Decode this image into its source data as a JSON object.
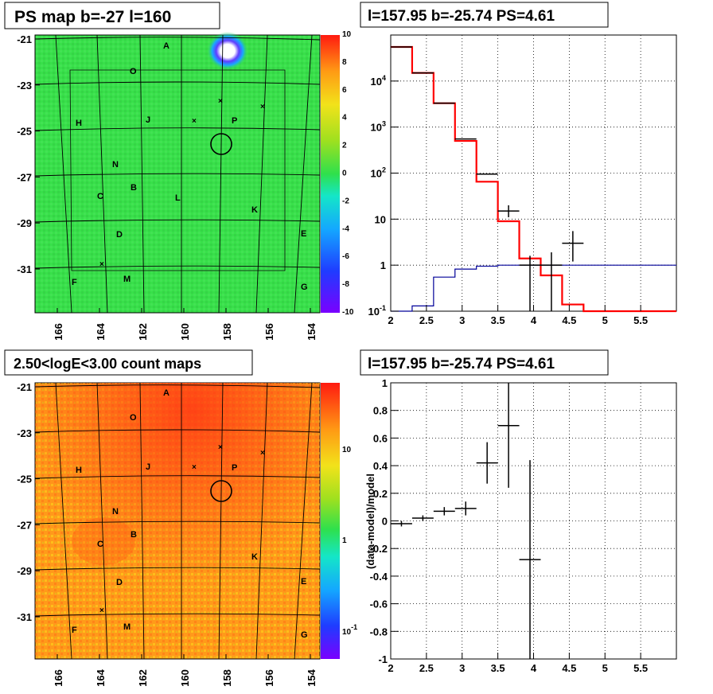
{
  "panels": {
    "tl_title": "PS map b=-27 l=160",
    "tr_title": "l=157.95 b=-25.74 PS=4.61",
    "bl_title": "2.50<logE<3.00 count maps",
    "br_title": "l=157.95 b=-25.74 PS=4.61"
  },
  "colors": {
    "model_red": "#ff0000",
    "bg_blue": "#000099",
    "data_black": "#000000",
    "map_green": "#38e04a",
    "count_orange": "#ff9a1a"
  },
  "chart_data": [
    {
      "type": "heatmap",
      "title": "PS map b=-27 l=160",
      "x_ticks": [
        "166",
        "164",
        "162",
        "160",
        "158",
        "156",
        "154"
      ],
      "y_ticks": [
        "-21",
        "-23",
        "-25",
        "-27",
        "-29",
        "-31"
      ],
      "colorbar_ticks": [
        "10",
        "8",
        "6",
        "4",
        "2",
        "0",
        "-2",
        "-4",
        "-6",
        "-8",
        "-10"
      ],
      "colorbar_range": [
        -10,
        10
      ],
      "region_labels": [
        "A",
        "O",
        "H",
        "J",
        "P",
        "N",
        "B",
        "C",
        "L",
        "K",
        "D",
        "E",
        "F",
        "M",
        "G"
      ],
      "source_marker": {
        "l": 157.95,
        "b": -25.74
      }
    },
    {
      "type": "line",
      "title": "l=157.95 b=-25.74 PS=4.61",
      "y_scale": "log",
      "xlim": [
        2,
        6
      ],
      "ylim": [
        0.1,
        100000
      ],
      "x_ticks": [
        "2",
        "2.5",
        "3",
        "3.5",
        "4",
        "4.5",
        "5",
        "5.5"
      ],
      "y_ticks": [
        "10^-1",
        "1",
        "10",
        "10^2",
        "10^3",
        "10^4"
      ],
      "model_red": {
        "edges": [
          2.0,
          2.3,
          2.6,
          2.9,
          3.2,
          3.5,
          3.8,
          4.1,
          4.4,
          4.7,
          6.0
        ],
        "values": [
          55000,
          15000,
          3300,
          500,
          65,
          9,
          1.4,
          0.6,
          0.14,
          0.1
        ]
      },
      "background_blue": {
        "edges": [
          2.0,
          2.3,
          2.6,
          2.9,
          3.2,
          3.5,
          3.8,
          6.0
        ],
        "values": [
          0.1,
          0.13,
          0.55,
          0.82,
          0.95,
          1.0,
          1.0
        ]
      },
      "data_points": [
        {
          "x": 2.15,
          "y": 55000
        },
        {
          "x": 2.45,
          "y": 15000
        },
        {
          "x": 2.75,
          "y": 3300
        },
        {
          "x": 3.05,
          "y": 550
        },
        {
          "x": 3.35,
          "y": 95,
          "xerr": 0.15
        },
        {
          "x": 3.65,
          "y": 15,
          "xerr": 0.15,
          "ylo": 11,
          "yhi": 20
        },
        {
          "x": 3.95,
          "y": 1.0,
          "xerr": 0.15,
          "ylo": 0.1,
          "yhi": 1.6
        },
        {
          "x": 4.25,
          "y": 1.0,
          "xerr": 0.15,
          "ylo": 0.1,
          "yhi": 1.9
        },
        {
          "x": 4.55,
          "y": 3.0,
          "xerr": 0.15,
          "ylo": 1.2,
          "yhi": 5.5
        }
      ]
    },
    {
      "type": "heatmap",
      "title": "2.50<logE<3.00 count maps",
      "x_ticks": [
        "166",
        "164",
        "162",
        "160",
        "158",
        "156",
        "154"
      ],
      "y_ticks": [
        "-21",
        "-23",
        "-25",
        "-27",
        "-29",
        "-31"
      ],
      "colorbar_ticks": [
        "10",
        "1",
        "10^-1"
      ],
      "colorbar_scale": "log",
      "region_labels": [
        "A",
        "O",
        "H",
        "J",
        "P",
        "N",
        "B",
        "C",
        "K",
        "D",
        "E",
        "F",
        "M",
        "G"
      ],
      "source_marker": {
        "l": 157.95,
        "b": -25.74
      }
    },
    {
      "type": "scatter",
      "title": "l=157.95 b=-25.74 PS=4.61",
      "ylabel": "(data-model)/model",
      "xlim": [
        2,
        6
      ],
      "ylim": [
        -1,
        1
      ],
      "x_ticks": [
        "2",
        "2.5",
        "3",
        "3.5",
        "4",
        "4.5",
        "5",
        "5.5"
      ],
      "y_ticks": [
        "1",
        "0.8",
        "0.6",
        "0.4",
        "0.2",
        "0",
        "-0.2",
        "-0.4",
        "-0.6",
        "-0.8",
        "-1"
      ],
      "points": [
        {
          "x": 2.15,
          "y": -0.02,
          "xerr": 0.15,
          "yerr": 0.02
        },
        {
          "x": 2.45,
          "y": 0.02,
          "xerr": 0.15,
          "yerr": 0.02
        },
        {
          "x": 2.75,
          "y": 0.07,
          "xerr": 0.15,
          "yerr": 0.03
        },
        {
          "x": 3.05,
          "y": 0.09,
          "xerr": 0.15,
          "yerr": 0.05
        },
        {
          "x": 3.35,
          "y": 0.42,
          "xerr": 0.15,
          "yerr": 0.15
        },
        {
          "x": 3.65,
          "y": 0.69,
          "xerr": 0.15,
          "yerr": 0.45
        },
        {
          "x": 3.95,
          "y": -0.28,
          "xerr": 0.15,
          "yerr": 0.72
        }
      ]
    }
  ]
}
